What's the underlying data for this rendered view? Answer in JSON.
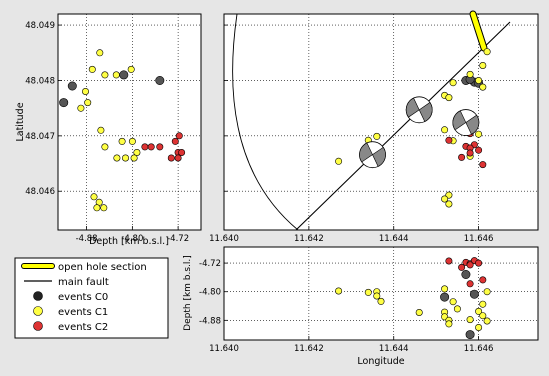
{
  "chart_data": [
    {
      "panel": "depth-latitude",
      "type": "scatter",
      "xlabel": "Depth [km b.s.l.]",
      "ylabel": "Latitude",
      "xlim": [
        -4.93,
        -4.68
      ],
      "ylim": [
        48.0453,
        48.0492
      ],
      "x_ticks": [
        "-4.88",
        "-4.80",
        "-4.72"
      ],
      "y_ticks": [
        "48.049",
        "48.048",
        "48.047",
        "48.046"
      ],
      "grid": true,
      "series": [
        {
          "name": "events C0",
          "color": "#555555",
          "points": [
            [
              -4.92,
              48.0476
            ],
            [
              -4.905,
              48.0479
            ],
            [
              -4.815,
              48.0481
            ],
            [
              -4.752,
              48.048
            ]
          ]
        },
        {
          "name": "events C1",
          "color": "#ffff44",
          "points": [
            [
              -4.857,
              48.0485
            ],
            [
              -4.802,
              48.0482
            ],
            [
              -4.87,
              48.0482
            ],
            [
              -4.848,
              48.0481
            ],
            [
              -4.828,
              48.0481
            ],
            [
              -4.882,
              48.0478
            ],
            [
              -4.878,
              48.0476
            ],
            [
              -4.89,
              48.0475
            ],
            [
              -4.855,
              48.0471
            ],
            [
              -4.818,
              48.0469
            ],
            [
              -4.8,
              48.0469
            ],
            [
              -4.848,
              48.0468
            ],
            [
              -4.792,
              48.0467
            ],
            [
              -4.827,
              48.0466
            ],
            [
              -4.812,
              48.0466
            ],
            [
              -4.797,
              48.0466
            ],
            [
              -4.867,
              48.0459
            ],
            [
              -4.858,
              48.0458
            ],
            [
              -4.85,
              48.0457
            ],
            [
              -4.862,
              48.0457
            ]
          ]
        },
        {
          "name": "events C2",
          "color": "#dd3333",
          "points": [
            [
              -4.718,
              48.047
            ],
            [
              -4.725,
              48.0469
            ],
            [
              -4.752,
              48.0468
            ],
            [
              -4.778,
              48.0468
            ],
            [
              -4.767,
              48.0468
            ],
            [
              -4.72,
              48.0467
            ],
            [
              -4.714,
              48.0467
            ],
            [
              -4.732,
              48.0466
            ],
            [
              -4.72,
              48.0466
            ]
          ]
        }
      ]
    },
    {
      "panel": "map",
      "type": "scatter",
      "xlim": [
        11.64,
        11.6474
      ],
      "ylim": [
        48.0453,
        48.0492
      ],
      "x_ticks": [
        "11.640",
        "11.642",
        "11.644",
        "11.646"
      ],
      "grid": true,
      "series": [
        {
          "name": "events C0",
          "color": "#555555",
          "points": [
            [
              11.6457,
              48.048
            ],
            [
              11.6459,
              48.04797
            ],
            [
              11.646,
              48.04795
            ],
            [
              11.6458,
              48.04802
            ]
          ]
        },
        {
          "name": "events C1",
          "color": "#ffff44",
          "points": [
            [
              11.6462,
              48.04852
            ],
            [
              11.6461,
              48.04827
            ],
            [
              11.6458,
              48.04811
            ],
            [
              11.646,
              48.048
            ],
            [
              11.6454,
              48.04796
            ],
            [
              11.6461,
              48.04788
            ],
            [
              11.6452,
              48.04773
            ],
            [
              11.6453,
              48.04769
            ],
            [
              11.6427,
              48.04654
            ],
            [
              11.6436,
              48.04699
            ],
            [
              11.6434,
              48.04692
            ],
            [
              11.6436,
              48.0468
            ],
            [
              11.6436,
              48.04672
            ],
            [
              11.6437,
              48.04668
            ],
            [
              11.6452,
              48.04711
            ],
            [
              11.6454,
              48.04691
            ],
            [
              11.646,
              48.04703
            ],
            [
              11.6458,
              48.04663
            ],
            [
              11.6453,
              48.04593
            ],
            [
              11.6452,
              48.04586
            ],
            [
              11.6453,
              48.04577
            ]
          ]
        },
        {
          "name": "events C2",
          "color": "#dd3333",
          "points": [
            [
              11.6458,
              48.04704
            ],
            [
              11.6459,
              48.04684
            ],
            [
              11.6457,
              48.04681
            ],
            [
              11.6458,
              48.04678
            ],
            [
              11.646,
              48.04674
            ],
            [
              11.6458,
              48.04669
            ],
            [
              11.6456,
              48.04661
            ],
            [
              11.6461,
              48.04648
            ],
            [
              11.6453,
              48.04692
            ]
          ]
        }
      ],
      "focal_mechanisms": [
        [
          11.6435,
          48.04666
        ],
        [
          11.6446,
          48.04747
        ],
        [
          11.6457,
          48.04724
        ]
      ]
    },
    {
      "panel": "longitude-depth",
      "type": "scatter",
      "xlabel": "Longitude",
      "ylabel": "Depth [km b.s.l.]",
      "xlim": [
        11.64,
        11.6474
      ],
      "ylim": [
        -4.935,
        -4.675
      ],
      "x_ticks": [
        "11.640",
        "11.642",
        "11.644",
        "11.646"
      ],
      "y_ticks": [
        "-4.72",
        "-4.80",
        "-4.88"
      ],
      "grid": true,
      "series": [
        {
          "name": "events C0",
          "color": "#555555",
          "points": [
            [
              11.6457,
              -4.752
            ],
            [
              11.6452,
              -4.815
            ],
            [
              11.6459,
              -4.807
            ],
            [
              11.6458,
              -4.92
            ]
          ]
        },
        {
          "name": "events C1",
          "color": "#ffff44",
          "points": [
            [
              11.6427,
              -4.798
            ],
            [
              11.6434,
              -4.802
            ],
            [
              11.6436,
              -4.8
            ],
            [
              11.6437,
              -4.827
            ],
            [
              11.6436,
              -4.812
            ],
            [
              11.6446,
              -4.858
            ],
            [
              11.6452,
              -4.857
            ],
            [
              11.6452,
              -4.87
            ],
            [
              11.6453,
              -4.88
            ],
            [
              11.6455,
              -4.848
            ],
            [
              11.6454,
              -4.828
            ],
            [
              11.646,
              -4.855
            ],
            [
              11.6461,
              -4.867
            ],
            [
              11.6461,
              -4.835
            ],
            [
              11.6462,
              -4.882
            ],
            [
              11.6462,
              -4.8
            ],
            [
              11.6453,
              -4.89
            ],
            [
              11.646,
              -4.9
            ],
            [
              11.6458,
              -4.878
            ],
            [
              11.6452,
              -4.792
            ]
          ]
        },
        {
          "name": "events C2",
          "color": "#dd3333",
          "points": [
            [
              11.6453,
              -4.714
            ],
            [
              11.6457,
              -4.718
            ],
            [
              11.6458,
              -4.722
            ],
            [
              11.6459,
              -4.713
            ],
            [
              11.646,
              -4.72
            ],
            [
              11.6458,
              -4.725
            ],
            [
              11.6456,
              -4.732
            ],
            [
              11.6461,
              -4.767
            ],
            [
              11.6458,
              -4.778
            ]
          ]
        }
      ]
    }
  ],
  "legend": {
    "placement": "lower-left",
    "items": [
      {
        "label": "open hole section",
        "kind": "bar",
        "color": "#ffff00"
      },
      {
        "label": "main fault",
        "kind": "line",
        "color": "#000000"
      },
      {
        "label": "events C0",
        "kind": "dot",
        "color": "#222222"
      },
      {
        "label": "events C1",
        "kind": "dot",
        "color": "#ffff44"
      },
      {
        "label": "events C2",
        "kind": "dot",
        "color": "#dd3333"
      }
    ]
  }
}
